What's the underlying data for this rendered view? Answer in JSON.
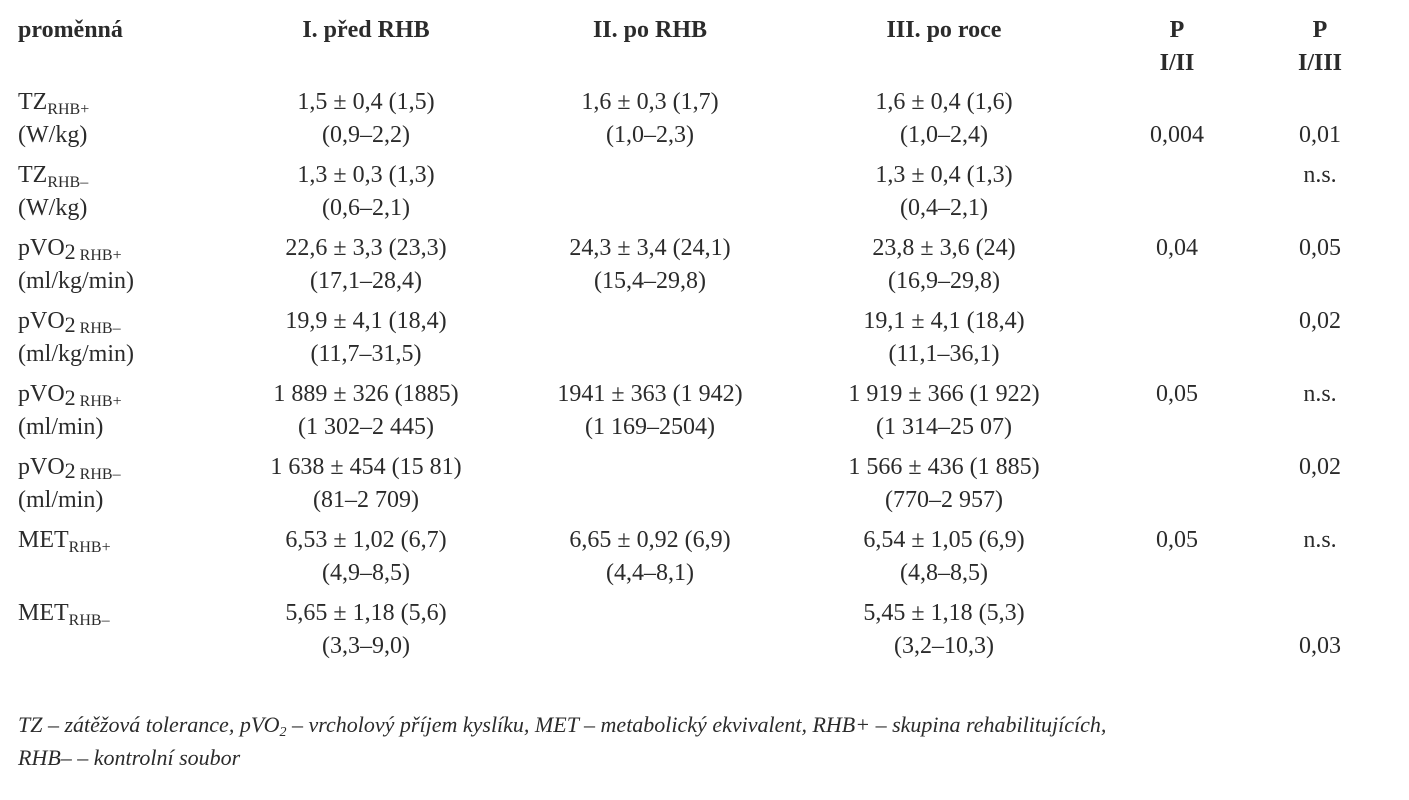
{
  "table": {
    "headers": [
      {
        "line1": "proměnná",
        "line2": ""
      },
      {
        "line1": "I. před RHB",
        "line2": ""
      },
      {
        "line1": "II. po RHB",
        "line2": ""
      },
      {
        "line1": "III. po roce",
        "line2": ""
      },
      {
        "line1": "P",
        "line2": "I/II"
      },
      {
        "line1": "P",
        "line2": "I/III"
      }
    ],
    "rows": [
      {
        "var_main": "TZ",
        "var_sub": "RHB+",
        "var_unit": "(W/kg)",
        "c1": [
          "1,5 ± 0,4 (1,5)",
          "(0,9–2,2)"
        ],
        "c2": [
          "1,6 ± 0,3 (1,7)",
          "(1,0–2,3)"
        ],
        "c3": [
          "1,6 ± 0,4 (1,6)",
          "(1,0–2,4)"
        ],
        "p12": "0,004",
        "p12_line": 2,
        "p13": "0,01",
        "p13_line": 2
      },
      {
        "var_main": "TZ",
        "var_sub": "RHB–",
        "var_unit": "(W/kg)",
        "c1": [
          "1,3 ± 0,3 (1,3)",
          "(0,6–2,1)"
        ],
        "c2": [
          "",
          ""
        ],
        "c3": [
          "1,3 ± 0,4 (1,3)",
          "(0,4–2,1)"
        ],
        "p12": "",
        "p12_line": 1,
        "p13": "n.s.",
        "p13_line": 1
      },
      {
        "var_main": "pVO",
        "var_sub2": "2",
        "var_sub": " RHB+",
        "var_unit": "(ml/kg/min)",
        "c1": [
          "22,6 ± 3,3 (23,3)",
          "(17,1–28,4)"
        ],
        "c2": [
          "24,3 ± 3,4 (24,1)",
          "(15,4–29,8)"
        ],
        "c3": [
          "23,8 ± 3,6 (24)",
          "(16,9–29,8)"
        ],
        "p12": "0,04",
        "p12_line": 1,
        "p13": "0,05",
        "p13_line": 1
      },
      {
        "var_main": "pVO",
        "var_sub2": "2",
        "var_sub": " RHB–",
        "var_unit": "(ml/kg/min)",
        "c1": [
          "19,9 ± 4,1 (18,4)",
          "(11,7–31,5)"
        ],
        "c2": [
          "",
          ""
        ],
        "c3": [
          "19,1 ± 4,1 (18,4)",
          "(11,1–36,1)"
        ],
        "p12": "",
        "p12_line": 1,
        "p13": "0,02",
        "p13_line": 1
      },
      {
        "var_main": "pVO",
        "var_sub2": "2",
        "var_sub": " RHB+",
        "var_unit": "(ml/min)",
        "c1": [
          "1 889 ± 326 (1885)",
          "(1 302–2 445)"
        ],
        "c2": [
          "1941 ± 363 (1 942)",
          "(1 169–2504)"
        ],
        "c3": [
          "1 919 ± 366 (1 922)",
          "(1 314–25 07)"
        ],
        "p12": "0,05",
        "p12_line": 1,
        "p13": "n.s.",
        "p13_line": 1
      },
      {
        "var_main": "pVO",
        "var_sub2": "2",
        "var_sub": " RHB–",
        "var_unit": "(ml/min)",
        "c1": [
          "1 638 ± 454 (15 81)",
          "(81–2 709)"
        ],
        "c2": [
          "",
          ""
        ],
        "c3": [
          "1 566 ± 436 (1 885)",
          "(770–2 957)"
        ],
        "p12": "",
        "p12_line": 1,
        "p13": "0,02",
        "p13_line": 1
      },
      {
        "var_main": "MET",
        "var_sub": "RHB+",
        "var_unit": "",
        "c1": [
          "6,53 ± 1,02 (6,7)",
          "(4,9–8,5)"
        ],
        "c2": [
          "6,65 ± 0,92 (6,9)",
          "(4,4–8,1)"
        ],
        "c3": [
          "6,54 ± 1,05 (6,9)",
          "(4,8–8,5)"
        ],
        "p12": "0,05",
        "p12_line": 1,
        "p13": "n.s.",
        "p13_line": 1
      },
      {
        "var_main": "MET",
        "var_sub": "RHB–",
        "var_unit": "",
        "c1": [
          "5,65 ± 1,18 (5,6)",
          "(3,3–9,0)"
        ],
        "c2": [
          "",
          ""
        ],
        "c3": [
          "5,45 ± 1,18 (5,3)",
          "(3,2–10,3)"
        ],
        "p12": "",
        "p12_line": 1,
        "p13": "0,03",
        "p13_line": 2
      }
    ]
  },
  "footnote": {
    "line1_a": "TZ – zátěžová tolerance, pVO",
    "line1_sub": "2",
    "line1_b": " – vrcholový příjem kyslíku, MET – metabolický ekvivalent, RHB+ – skupina rehabilitujících,",
    "line2": "RHB– – kontrolní soubor"
  }
}
